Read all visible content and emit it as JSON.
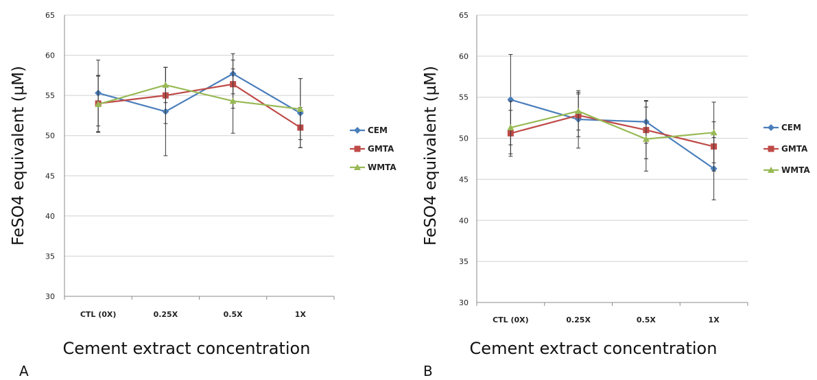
{
  "chart_data": [
    {
      "panel": "A",
      "type": "line",
      "categories": [
        "CTL (0X)",
        "0.25X",
        "0.5X",
        "1X"
      ],
      "ylabel": "FeSO4 equivalent (µM)",
      "xlabel": "Cement extract concentration",
      "ylim": [
        30,
        65
      ],
      "yticks": [
        30,
        35,
        40,
        45,
        50,
        55,
        60,
        65
      ],
      "grid": true,
      "legend_position": "right",
      "series": [
        {
          "name": "CEM",
          "color": "#4a7ebb",
          "marker": "diamond",
          "values": [
            55.3,
            53.0,
            57.7,
            52.8
          ],
          "error": [
            4.1,
            5.5,
            2.5,
            4.3
          ]
        },
        {
          "name": "GMTA",
          "color": "#be4b48",
          "marker": "square",
          "values": [
            54.0,
            55.0,
            56.4,
            51.0
          ],
          "error": [
            3.5,
            3.5,
            3.0,
            2.5
          ]
        },
        {
          "name": "WMTA",
          "color": "#98b954",
          "marker": "triangle",
          "values": [
            53.9,
            56.3,
            54.3,
            53.3
          ],
          "error": [
            3.5,
            2.2,
            4.0,
            3.8
          ]
        }
      ]
    },
    {
      "panel": "B",
      "type": "line",
      "categories": [
        "CTL (0X)",
        "0.25X",
        "0.5X",
        "1X"
      ],
      "ylabel": "FeSO4 equivalent (µM)",
      "xlabel": "Cement extract concentration",
      "ylim": [
        30,
        65
      ],
      "yticks": [
        30,
        35,
        40,
        45,
        50,
        55,
        60,
        65
      ],
      "grid": true,
      "legend_position": "right",
      "series": [
        {
          "name": "CEM",
          "color": "#4a7ebb",
          "marker": "diamond",
          "values": [
            54.7,
            52.3,
            52.0,
            46.3
          ],
          "error": [
            5.5,
            3.5,
            2.6,
            3.8
          ]
        },
        {
          "name": "GMTA",
          "color": "#be4b48",
          "marker": "square",
          "values": [
            50.6,
            52.8,
            51.0,
            49.0
          ],
          "error": [
            2.8,
            2.6,
            3.5,
            3.0
          ]
        },
        {
          "name": "WMTA",
          "color": "#98b954",
          "marker": "triangle",
          "values": [
            51.3,
            53.3,
            49.9,
            50.7
          ],
          "error": [
            3.2,
            2.3,
            3.9,
            3.7
          ]
        }
      ]
    }
  ]
}
